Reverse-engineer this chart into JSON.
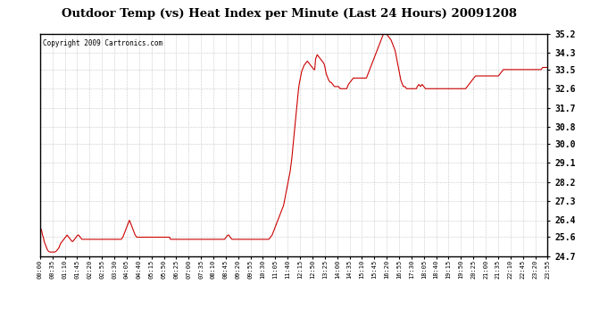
{
  "title": "Outdoor Temp (vs) Heat Index per Minute (Last 24 Hours) 20091208",
  "copyright_text": "Copyright 2009 Cartronics.com",
  "line_color": "#cc0000",
  "background_color": "#ffffff",
  "plot_bg_color": "#ffffff",
  "grid_color": "#c8c8c8",
  "yticks": [
    24.7,
    25.6,
    26.4,
    27.3,
    28.2,
    29.1,
    30.0,
    30.8,
    31.7,
    32.6,
    33.5,
    34.3,
    35.2
  ],
  "ymin": 24.7,
  "ymax": 35.2,
  "x_labels": [
    "00:00",
    "00:35",
    "01:10",
    "01:45",
    "02:20",
    "02:55",
    "03:30",
    "04:05",
    "04:40",
    "05:15",
    "05:50",
    "06:25",
    "07:00",
    "07:35",
    "08:10",
    "08:45",
    "09:20",
    "09:55",
    "10:30",
    "11:05",
    "11:40",
    "12:15",
    "12:50",
    "13:25",
    "14:00",
    "14:35",
    "15:10",
    "15:45",
    "16:20",
    "16:55",
    "17:30",
    "18:05",
    "18:40",
    "19:15",
    "19:50",
    "20:25",
    "21:00",
    "21:35",
    "22:10",
    "22:45",
    "23:20",
    "23:55"
  ],
  "n_data_points": 1440,
  "data_y": [
    26.1,
    26.0,
    25.9,
    25.7,
    25.6,
    25.4,
    25.3,
    25.2,
    25.1,
    25.0,
    24.95,
    24.92,
    24.9,
    24.9,
    24.9,
    24.9,
    24.9,
    24.9,
    24.9,
    24.92,
    24.95,
    25.0,
    25.05,
    25.1,
    25.2,
    25.3,
    25.35,
    25.4,
    25.45,
    25.5,
    25.55,
    25.6,
    25.65,
    25.7,
    25.65,
    25.6,
    25.55,
    25.5,
    25.45,
    25.4,
    25.4,
    25.45,
    25.5,
    25.55,
    25.6,
    25.65,
    25.7,
    25.7,
    25.65,
    25.6,
    25.55,
    25.5,
    25.5,
    25.5,
    25.5,
    25.5,
    25.5,
    25.5,
    25.5,
    25.5,
    25.5,
    25.5,
    25.5,
    25.5,
    25.5,
    25.5,
    25.5,
    25.5,
    25.5,
    25.5,
    25.5,
    25.5,
    25.5,
    25.5,
    25.5,
    25.5,
    25.5,
    25.5,
    25.5,
    25.5,
    25.5,
    25.5,
    25.5,
    25.5,
    25.5,
    25.5,
    25.5,
    25.5,
    25.5,
    25.5,
    25.5,
    25.5,
    25.5,
    25.5,
    25.5,
    25.5,
    25.5,
    25.5,
    25.5,
    25.5,
    25.55,
    25.6,
    25.7,
    25.8,
    25.9,
    26.0,
    26.1,
    26.2,
    26.3,
    26.4,
    26.3,
    26.2,
    26.1,
    26.0,
    25.9,
    25.8,
    25.7,
    25.65,
    25.6,
    25.6,
    25.6,
    25.6,
    25.6,
    25.6,
    25.6,
    25.6,
    25.6,
    25.6,
    25.6,
    25.6,
    25.6,
    25.6,
    25.6,
    25.6,
    25.6,
    25.6,
    25.6,
    25.6,
    25.6,
    25.6,
    25.6,
    25.6,
    25.6,
    25.6,
    25.6,
    25.6,
    25.6,
    25.6,
    25.6,
    25.6,
    25.6,
    25.6,
    25.6,
    25.6,
    25.6,
    25.6,
    25.6,
    25.6,
    25.6,
    25.5,
    25.5,
    25.5,
    25.5,
    25.5,
    25.5,
    25.5,
    25.5,
    25.5,
    25.5,
    25.5,
    25.5,
    25.5,
    25.5,
    25.5,
    25.5,
    25.5,
    25.5,
    25.5,
    25.5,
    25.5,
    25.5,
    25.5,
    25.5,
    25.5,
    25.5,
    25.5,
    25.5,
    25.5,
    25.5,
    25.5,
    25.5,
    25.5,
    25.5,
    25.5,
    25.5,
    25.5,
    25.5,
    25.5,
    25.5,
    25.5,
    25.5,
    25.5,
    25.5,
    25.5,
    25.5,
    25.5,
    25.5,
    25.5,
    25.5,
    25.5,
    25.5,
    25.5,
    25.5,
    25.5,
    25.5,
    25.5,
    25.5,
    25.5,
    25.5,
    25.5,
    25.5,
    25.5,
    25.5,
    25.5,
    25.5,
    25.5,
    25.55,
    25.6,
    25.65,
    25.7,
    25.7,
    25.65,
    25.6,
    25.55,
    25.5,
    25.5,
    25.5,
    25.5,
    25.5,
    25.5,
    25.5,
    25.5,
    25.5,
    25.5,
    25.5,
    25.5,
    25.5,
    25.5,
    25.5,
    25.5,
    25.5,
    25.5,
    25.5,
    25.5,
    25.5,
    25.5,
    25.5,
    25.5,
    25.5,
    25.5,
    25.5,
    25.5,
    25.5,
    25.5,
    25.5,
    25.5,
    25.5,
    25.5,
    25.5,
    25.5,
    25.5,
    25.5,
    25.5,
    25.5,
    25.5,
    25.5,
    25.5,
    25.5,
    25.5,
    25.5,
    25.55,
    25.6,
    25.65,
    25.7,
    25.8,
    25.9,
    26.0,
    26.1,
    26.2,
    26.3,
    26.4,
    26.5,
    26.6,
    26.7,
    26.8,
    26.9,
    27.0,
    27.1,
    27.3,
    27.5,
    27.7,
    27.9,
    28.1,
    28.3,
    28.5,
    28.7,
    29.0,
    29.3,
    29.7,
    30.1,
    30.5,
    30.9,
    31.3,
    31.7,
    32.1,
    32.5,
    32.8,
    33.0,
    33.2,
    33.4,
    33.5,
    33.6,
    33.7,
    33.75,
    33.8,
    33.85,
    33.9,
    33.85,
    33.8,
    33.75,
    33.7,
    33.65,
    33.6,
    33.55,
    33.5,
    33.5,
    34.0,
    34.1,
    34.2,
    34.15,
    34.1,
    34.05,
    34.0,
    33.95,
    33.9,
    33.85,
    33.8,
    33.7,
    33.5,
    33.3,
    33.2,
    33.1,
    33.0,
    32.95,
    32.9,
    32.9,
    32.85,
    32.8,
    32.75,
    32.7,
    32.7,
    32.7,
    32.7,
    32.7,
    32.7,
    32.65,
    32.6,
    32.6,
    32.6,
    32.6,
    32.6,
    32.6,
    32.6,
    32.6,
    32.6,
    32.7,
    32.8,
    32.85,
    32.9,
    32.95,
    33.0,
    33.05,
    33.1,
    33.1,
    33.1,
    33.1,
    33.1,
    33.1,
    33.1,
    33.1,
    33.1,
    33.1,
    33.1,
    33.1,
    33.1,
    33.1,
    33.1,
    33.1,
    33.1,
    33.2,
    33.3,
    33.4,
    33.5,
    33.6,
    33.7,
    33.8,
    33.9,
    34.0,
    34.1,
    34.2,
    34.3,
    34.4,
    34.5,
    34.6,
    34.7,
    34.8,
    34.9,
    35.0,
    35.1,
    35.2,
    35.2,
    35.2,
    35.2,
    35.15,
    35.1,
    35.05,
    35.0,
    34.95,
    34.9,
    34.8,
    34.7,
    34.6,
    34.5,
    34.4,
    34.2,
    34.0,
    33.8,
    33.6,
    33.4,
    33.2,
    33.0,
    32.9,
    32.8,
    32.7,
    32.7,
    32.7,
    32.65,
    32.6,
    32.6,
    32.6,
    32.6,
    32.6,
    32.6,
    32.6,
    32.6,
    32.6,
    32.6,
    32.6,
    32.6,
    32.6,
    32.7,
    32.75,
    32.8,
    32.75,
    32.7,
    32.75,
    32.8,
    32.75,
    32.7,
    32.65,
    32.6,
    32.6,
    32.6,
    32.6,
    32.6,
    32.6,
    32.6,
    32.6,
    32.6,
    32.6,
    32.6,
    32.6,
    32.6,
    32.6,
    32.6,
    32.6,
    32.6,
    32.6,
    32.6,
    32.6,
    32.6,
    32.6,
    32.6,
    32.6,
    32.6,
    32.6,
    32.6,
    32.6,
    32.6,
    32.6,
    32.6,
    32.6,
    32.6,
    32.6,
    32.6,
    32.6,
    32.6,
    32.6,
    32.6,
    32.6,
    32.6,
    32.6,
    32.6,
    32.6,
    32.6,
    32.6,
    32.6,
    32.6,
    32.6,
    32.6,
    32.65,
    32.7,
    32.75,
    32.8,
    32.85,
    32.9,
    32.95,
    33.0,
    33.05,
    33.1,
    33.15,
    33.2,
    33.2,
    33.2,
    33.2,
    33.2,
    33.2,
    33.2,
    33.2,
    33.2,
    33.2,
    33.2,
    33.2,
    33.2,
    33.2,
    33.2,
    33.2,
    33.2,
    33.2,
    33.2,
    33.2,
    33.2,
    33.2,
    33.2,
    33.2,
    33.2,
    33.2,
    33.2,
    33.2,
    33.2,
    33.25,
    33.3,
    33.35,
    33.4,
    33.45,
    33.5,
    33.5,
    33.5,
    33.5,
    33.5,
    33.5,
    33.5,
    33.5,
    33.5,
    33.5,
    33.5,
    33.5,
    33.5,
    33.5,
    33.5,
    33.5,
    33.5,
    33.5,
    33.5,
    33.5,
    33.5,
    33.5,
    33.5,
    33.5,
    33.5,
    33.5,
    33.5,
    33.5,
    33.5,
    33.5,
    33.5,
    33.5,
    33.5,
    33.5,
    33.5,
    33.5,
    33.5,
    33.5,
    33.5,
    33.5,
    33.5,
    33.5,
    33.5,
    33.5,
    33.5,
    33.5,
    33.5,
    33.55,
    33.6,
    33.6,
    33.6,
    33.6,
    33.6,
    33.6,
    33.6
  ]
}
